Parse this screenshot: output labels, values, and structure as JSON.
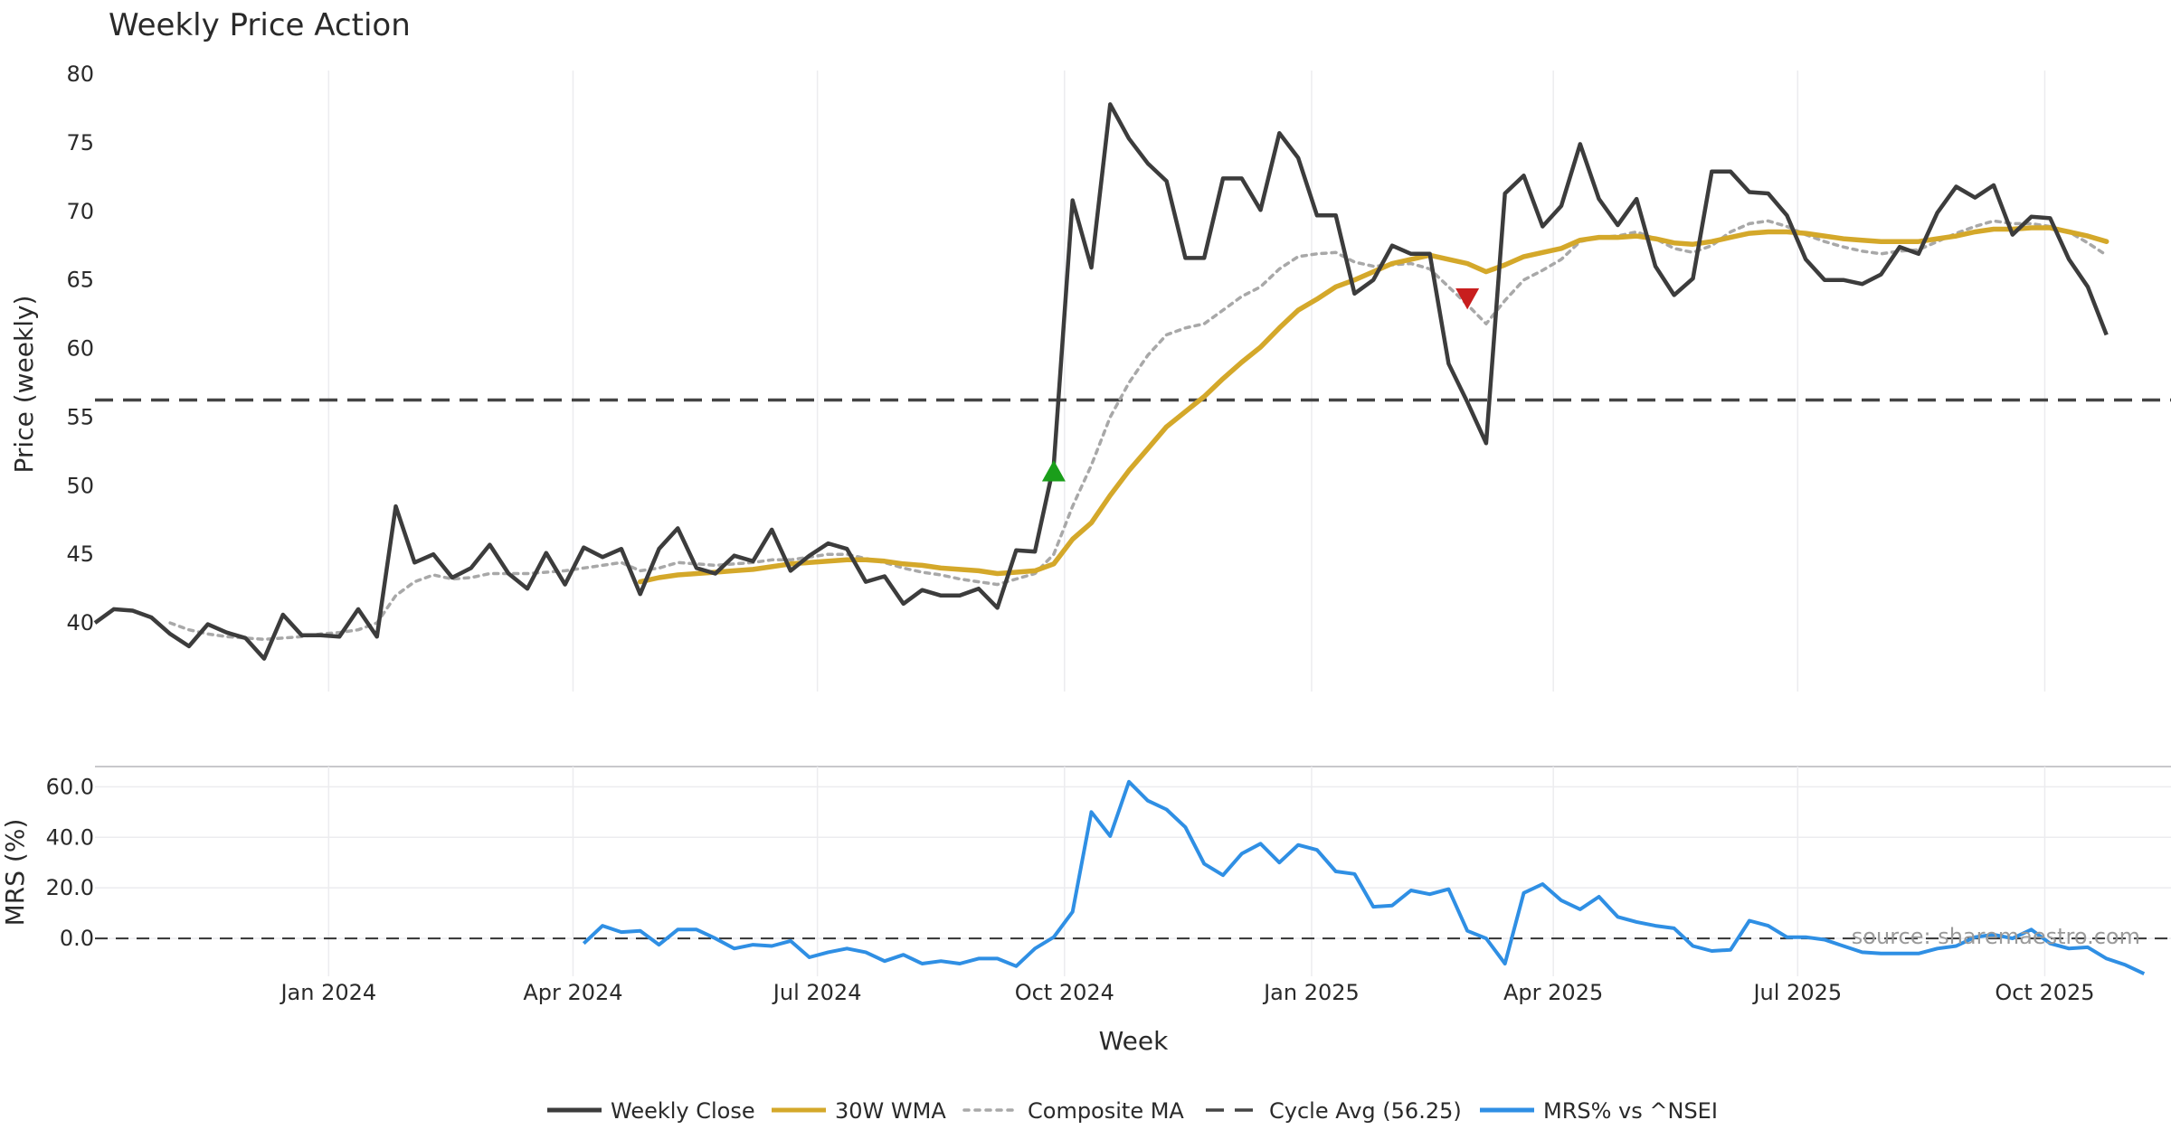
{
  "chart_data": {
    "type": "line",
    "title": "Weekly Price Action",
    "xlabel": "Week",
    "watermark": "source: sharemaestro.com",
    "x_range": [
      "2023-10-06",
      "2025-11-17"
    ],
    "x_ticks": [
      {
        "date": "2024-01-01",
        "label": "Jan 2024"
      },
      {
        "date": "2024-04-01",
        "label": "Apr 2024"
      },
      {
        "date": "2024-07-01",
        "label": "Jul 2024"
      },
      {
        "date": "2024-10-01",
        "label": "Oct 2024"
      },
      {
        "date": "2025-01-01",
        "label": "Jan 2025"
      },
      {
        "date": "2025-04-01",
        "label": "Apr 2025"
      },
      {
        "date": "2025-07-01",
        "label": "Jul 2025"
      },
      {
        "date": "2025-10-01",
        "label": "Oct 2025"
      }
    ],
    "price_panel": {
      "ylabel": "Price (weekly)",
      "ylim": [
        35,
        80
      ],
      "yticks": [
        40,
        45,
        50,
        55,
        60,
        65,
        70,
        75,
        80
      ],
      "cycle_avg": 56.25,
      "weekly_close": [
        40,
        41,
        40.9,
        40.4,
        39.2,
        38.3,
        39.9,
        39.3,
        38.9,
        37.4,
        40.6,
        39.1,
        39.1,
        39,
        41,
        39,
        48.5,
        44.4,
        45,
        43.3,
        44,
        45.7,
        43.6,
        42.5,
        45.1,
        42.8,
        45.5,
        44.8,
        45.4,
        42.1,
        45.4,
        46.9,
        44,
        43.6,
        44.9,
        44.5,
        46.8,
        43.8,
        44.9,
        45.8,
        45.4,
        43,
        43.4,
        41.4,
        42.4,
        42,
        42,
        42.5,
        41.1,
        45.3,
        45.2,
        51.5,
        70.8,
        65.9,
        77.8,
        75.3,
        73.5,
        72.2,
        66.6,
        66.6,
        72.4,
        72.4,
        70.1,
        75.7,
        73.9,
        69.7,
        69.7,
        64,
        65,
        67.5,
        66.9,
        66.9,
        58.9,
        56.1,
        53.1,
        71.3,
        72.6,
        68.9,
        70.4,
        74.9,
        70.9,
        69,
        70.9,
        66,
        63.9,
        65.1,
        72.9,
        72.9,
        71.4,
        71.3,
        69.7,
        66.5,
        65,
        65,
        64.7,
        65.4,
        67.4,
        66.9,
        69.9,
        71.8,
        71,
        71.9,
        68.3,
        69.6,
        69.5,
        66.5,
        64.5,
        61
      ],
      "wma_30w": [
        null,
        null,
        null,
        null,
        null,
        null,
        null,
        null,
        null,
        null,
        null,
        null,
        null,
        null,
        null,
        null,
        null,
        null,
        null,
        null,
        null,
        null,
        null,
        null,
        null,
        null,
        null,
        null,
        null,
        43,
        43.3,
        43.5,
        43.6,
        43.7,
        43.8,
        43.9,
        44.1,
        44.3,
        44.4,
        44.5,
        44.6,
        44.6,
        44.5,
        44.3,
        44.2,
        44,
        43.9,
        43.8,
        43.6,
        43.7,
        43.8,
        44.3,
        46.1,
        47.3,
        49.3,
        51.1,
        52.7,
        54.3,
        55.4,
        56.5,
        57.8,
        59,
        60.1,
        61.5,
        62.8,
        63.6,
        64.5,
        65,
        65.6,
        66.2,
        66.5,
        66.8,
        66.5,
        66.2,
        65.6,
        66.1,
        66.7,
        67,
        67.3,
        67.9,
        68.1,
        68.1,
        68.2,
        68,
        67.7,
        67.6,
        67.8,
        68.1,
        68.4,
        68.5,
        68.5,
        68.4,
        68.2,
        68,
        67.9,
        67.8,
        67.8,
        67.8,
        68,
        68.2,
        68.5,
        68.7,
        68.7,
        68.8,
        68.8,
        68.5,
        68.2,
        67.8
      ],
      "composite_ma": [
        null,
        null,
        null,
        null,
        40,
        39.5,
        39.2,
        39,
        38.9,
        38.8,
        38.9,
        39,
        39.2,
        39.3,
        39.5,
        40,
        42,
        43,
        43.5,
        43.2,
        43.3,
        43.6,
        43.6,
        43.6,
        43.7,
        43.8,
        44,
        44.2,
        44.4,
        43.8,
        44,
        44.4,
        44.3,
        44.2,
        44.3,
        44.4,
        44.6,
        44.6,
        44.8,
        45,
        45,
        44.7,
        44.4,
        44,
        43.7,
        43.5,
        43.2,
        43,
        42.8,
        43.2,
        43.6,
        45,
        48.5,
        51.5,
        55,
        57.5,
        59.5,
        61,
        61.5,
        61.8,
        62.8,
        63.8,
        64.5,
        65.8,
        66.7,
        66.9,
        67,
        66.3,
        66,
        66.1,
        66.2,
        65.8,
        64.5,
        63.2,
        61.8,
        63.5,
        65,
        65.7,
        66.5,
        67.8,
        68.1,
        68.2,
        68.5,
        68,
        67.3,
        67,
        67.5,
        68.5,
        69.1,
        69.3,
        68.9,
        68.3,
        67.8,
        67.4,
        67.1,
        66.9,
        67.1,
        67.2,
        67.8,
        68.4,
        68.9,
        69.3,
        69.1,
        69.1,
        68.9,
        68.5,
        67.7,
        66.8
      ]
    },
    "mrs_panel": {
      "ylabel": "MRS (%)",
      "ylim": [
        -15,
        68
      ],
      "yticks": [
        0,
        20,
        40,
        60
      ],
      "ytick_labels": [
        "0.0",
        "20.0",
        "40.0",
        "60.0"
      ],
      "baseline": 0,
      "mrs_pct": [
        null,
        null,
        null,
        null,
        null,
        null,
        null,
        null,
        null,
        null,
        null,
        null,
        null,
        null,
        null,
        null,
        null,
        null,
        null,
        null,
        null,
        null,
        null,
        null,
        null,
        null,
        -2,
        5,
        2.5,
        3,
        -2.5,
        3.5,
        3.5,
        0,
        -4,
        -2.5,
        -3,
        -1,
        -7.5,
        -5.5,
        -4,
        -5.5,
        -9,
        -6.5,
        -10,
        -9,
        -10,
        -8,
        -8,
        -11,
        -4,
        0.5,
        10.5,
        50,
        40.5,
        62,
        54.5,
        51,
        44,
        29.5,
        25,
        33.5,
        37.5,
        30,
        37,
        35,
        26.5,
        25.5,
        12.5,
        13,
        19,
        17.5,
        19.5,
        3,
        0,
        -10,
        18,
        21.5,
        15,
        11.5,
        16.5,
        8.5,
        6.5,
        5,
        4,
        -3,
        -5,
        -4.5,
        7,
        5,
        0.5,
        0.5,
        -0.5,
        -3,
        -5.5,
        -6,
        -6,
        -6,
        -4,
        -3,
        0.5,
        1.5,
        0,
        3.5,
        -2,
        -4,
        -3.5,
        -8,
        -10.5,
        -14
      ]
    },
    "series_start_date": "2023-10-06",
    "series_step_days": 7,
    "signals": [
      {
        "kind": "buy",
        "week_index": 51,
        "value": 51,
        "color": "#1a9e1a"
      },
      {
        "kind": "sell",
        "week_index": 73,
        "value": 63.7,
        "color": "#c81e1e"
      }
    ],
    "legend": [
      {
        "label": "Weekly Close",
        "color": "#3c3c3c",
        "style": "solid"
      },
      {
        "label": "30W WMA",
        "color": "#d4a82a",
        "style": "solid"
      },
      {
        "label": "Composite MA",
        "color": "#a8a8a8",
        "style": "dotted"
      },
      {
        "label": "Cycle Avg (56.25)",
        "color": "#444444",
        "style": "dashed"
      },
      {
        "label": "MRS% vs ^NSEI",
        "color": "#2f8fe4",
        "style": "solid"
      }
    ],
    "colors": {
      "close": "#3c3c3c",
      "wma": "#d4a82a",
      "composite": "#a8a8a8",
      "cycle": "#444444",
      "mrs": "#2f8fe4",
      "grid": "#ececef",
      "baseline": "#333333"
    }
  }
}
